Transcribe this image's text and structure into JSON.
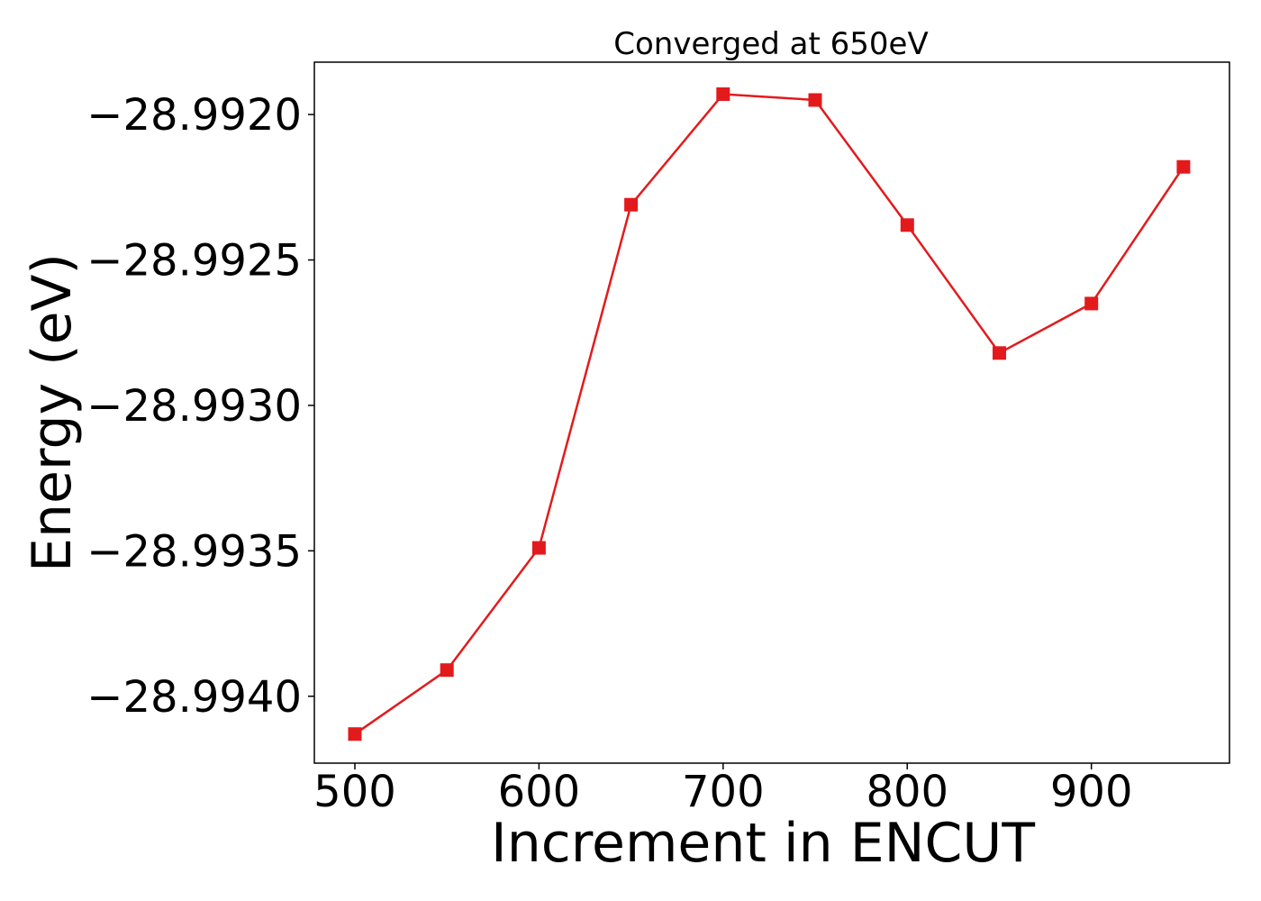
{
  "chart_data": {
    "type": "line",
    "title": "Converged at 650eV",
    "xlabel": "Increment in ENCUT",
    "ylabel": "Energy (eV)",
    "x": [
      500,
      550,
      600,
      650,
      700,
      750,
      800,
      850,
      900,
      950
    ],
    "series": [
      {
        "values": [
          -28.99413,
          -28.99391,
          -28.99349,
          -28.99231,
          -28.99193,
          -28.99195,
          -28.99238,
          -28.99282,
          -28.99265,
          -28.99218
        ],
        "color": "#e31a1c",
        "marker": "square"
      }
    ],
    "xlim": [
      478,
      975
    ],
    "ylim": [
      -28.99423,
      -28.99182
    ],
    "xticks": [
      500,
      600,
      700,
      800,
      900
    ],
    "xtick_labels": [
      "500",
      "600",
      "700",
      "800",
      "900"
    ],
    "yticks": [
      -28.992,
      -28.9925,
      -28.993,
      -28.9935,
      -28.994
    ],
    "ytick_labels": [
      "−28.9920",
      "−28.9925",
      "−28.9930",
      "−28.9935",
      "−28.9940"
    ],
    "grid": false,
    "legend": "none"
  }
}
